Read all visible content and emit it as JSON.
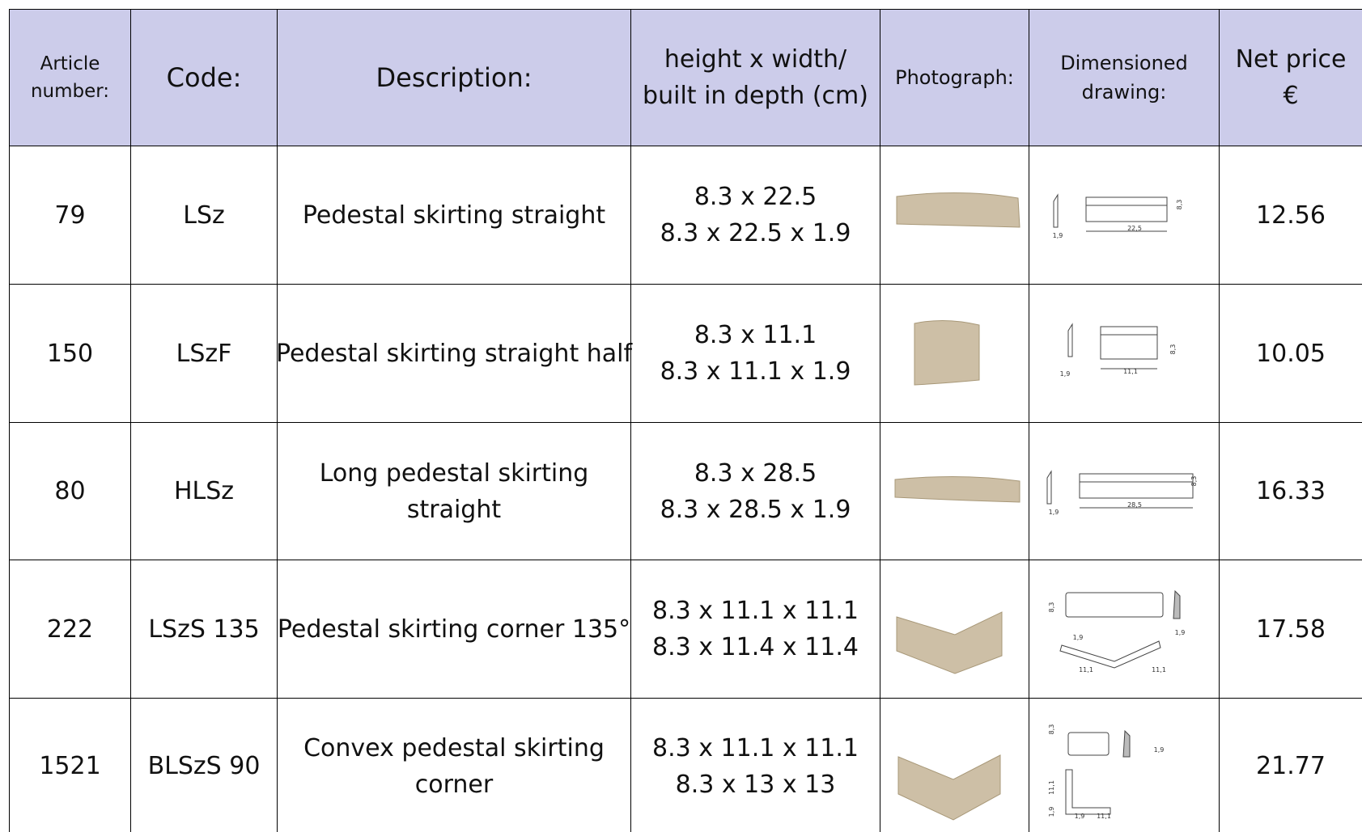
{
  "table": {
    "header": [
      [
        "Article",
        "number:"
      ],
      [
        "Code:"
      ],
      [
        "Description:"
      ],
      [
        "height x width/",
        "built in depth (cm)"
      ],
      [
        "Photograph:"
      ],
      [
        "Dimensioned",
        "drawing:"
      ],
      [
        "Net price",
        "€"
      ]
    ],
    "rows": [
      {
        "article": "79",
        "code": "LSz",
        "description": [
          "Pedestal skirting straight"
        ],
        "dimensions": [
          "8.3 x 22.5",
          "8.3 x 22.5 x 1.9"
        ],
        "drawing_labels": [
          "1,9",
          "22,5",
          "8,3"
        ],
        "price": "12.56"
      },
      {
        "article": "150",
        "code": "LSzF",
        "description": [
          "Pedestal skirting straight half"
        ],
        "dimensions": [
          "8.3 x 11.1",
          "8.3 x 11.1 x 1.9"
        ],
        "drawing_labels": [
          "1,9",
          "11,1",
          "8,3"
        ],
        "price": "10.05"
      },
      {
        "article": "80",
        "code": "HLSz",
        "description": [
          "Long pedestal skirting",
          "straight"
        ],
        "dimensions": [
          "8.3 x 28.5",
          "8.3 x 28.5 x 1.9"
        ],
        "drawing_labels": [
          "1,9",
          "28,5",
          "8,3"
        ],
        "price": "16.33"
      },
      {
        "article": "222",
        "code": "LSzS 135",
        "description": [
          "Pedestal skirting corner 135°"
        ],
        "dimensions": [
          "8.3 x 11.1 x 11.1",
          "8.3 x 11.4 x 11.4"
        ],
        "drawing_labels": [
          "8,3",
          "1,9",
          "1,9",
          "11,1",
          "11,1"
        ],
        "price": "17.58"
      },
      {
        "article": "1521",
        "code": "BLSzS 90",
        "description": [
          "Convex pedestal skirting",
          "corner"
        ],
        "dimensions": [
          "8.3 x 11.1 x 11.1",
          "8.3 x 13 x 13"
        ],
        "drawing_labels": [
          "8,3",
          "1,9",
          "11,1",
          "1,9",
          "1,9",
          "11,1"
        ],
        "price": "21.77"
      }
    ]
  }
}
